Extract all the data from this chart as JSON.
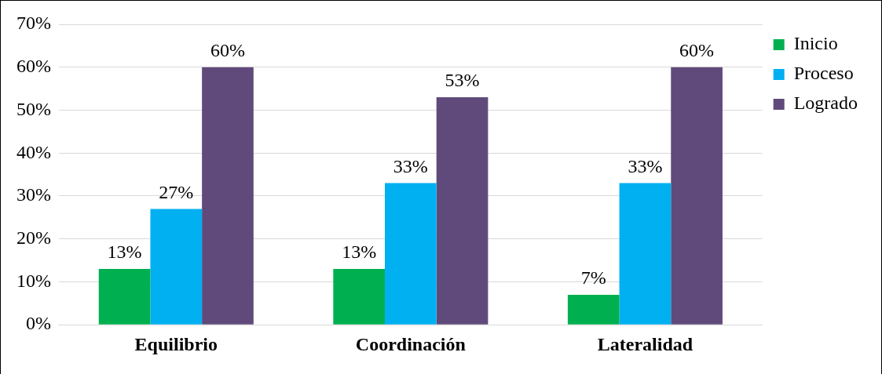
{
  "chart_data": {
    "type": "bar",
    "categories": [
      "Equilibrio",
      "Coordinación",
      "Lateralidad"
    ],
    "series": [
      {
        "name": "Inicio",
        "color": "#00b050",
        "values": [
          13,
          13,
          7
        ],
        "value_labels": [
          "13%",
          "13%",
          "7%"
        ]
      },
      {
        "name": "Proceso",
        "color": "#00b0f0",
        "values": [
          27,
          33,
          33
        ],
        "value_labels": [
          "27%",
          "33%",
          "33%"
        ]
      },
      {
        "name": "Logrado",
        "color": "#604a7b",
        "values": [
          60,
          53,
          60
        ],
        "value_labels": [
          "60%",
          "53%",
          "60%"
        ]
      }
    ],
    "ylim": [
      0,
      70
    ],
    "yticks": [
      {
        "value": 0,
        "label": "0%"
      },
      {
        "value": 10,
        "label": "10%"
      },
      {
        "value": 20,
        "label": "20%"
      },
      {
        "value": 30,
        "label": "30%"
      },
      {
        "value": 40,
        "label": "40%"
      },
      {
        "value": 50,
        "label": "50%"
      },
      {
        "value": 60,
        "label": "60%"
      },
      {
        "value": 70,
        "label": "70%"
      }
    ],
    "grid": "y",
    "legend": "right"
  }
}
